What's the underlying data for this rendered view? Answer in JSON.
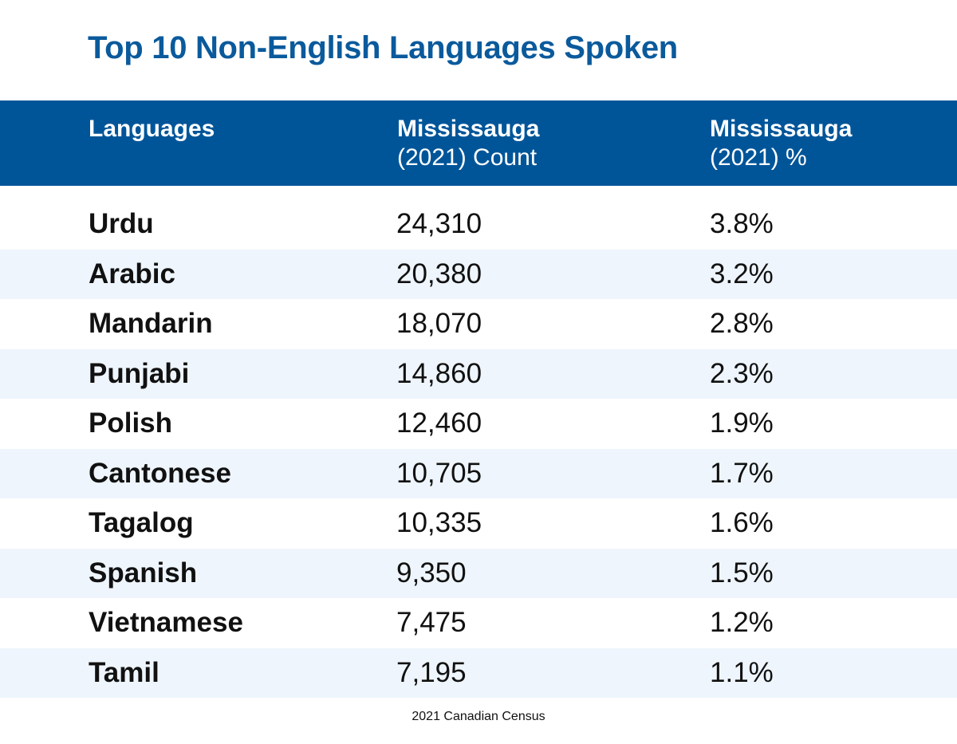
{
  "title": "Top 10 Non-English Languages Spoken",
  "header": {
    "languages": "Languages",
    "count_line1": "Mississauga",
    "count_line2": "(2021) Count",
    "pct_line1": "Mississauga",
    "pct_line2": "(2021) %"
  },
  "source": "2021 Canadian Census",
  "colors": {
    "title": "#0a5a9c",
    "header_background": "#005599",
    "header_text": "#ffffff",
    "alt_row": "#eef5fc"
  },
  "chart_data": {
    "type": "table",
    "title": "Top 10 Non-English Languages Spoken",
    "columns": [
      "Languages",
      "Mississauga (2021) Count",
      "Mississauga (2021) %"
    ],
    "rows": [
      {
        "language": "Urdu",
        "count": "24,310",
        "percent": "3.8%"
      },
      {
        "language": "Arabic",
        "count": "20,380",
        "percent": "3.2%"
      },
      {
        "language": "Mandarin",
        "count": "18,070",
        "percent": "2.8%"
      },
      {
        "language": "Punjabi",
        "count": "14,860",
        "percent": "2.3%"
      },
      {
        "language": "Polish",
        "count": "12,460",
        "percent": "1.9%"
      },
      {
        "language": "Cantonese",
        "count": "10,705",
        "percent": "1.7%"
      },
      {
        "language": "Tagalog",
        "count": "10,335",
        "percent": "1.6%"
      },
      {
        "language": "Spanish",
        "count": "9,350",
        "percent": "1.5%"
      },
      {
        "language": "Vietnamese",
        "count": "7,475",
        "percent": "1.2%"
      },
      {
        "language": "Tamil",
        "count": "7,195",
        "percent": "1.1%"
      }
    ]
  }
}
